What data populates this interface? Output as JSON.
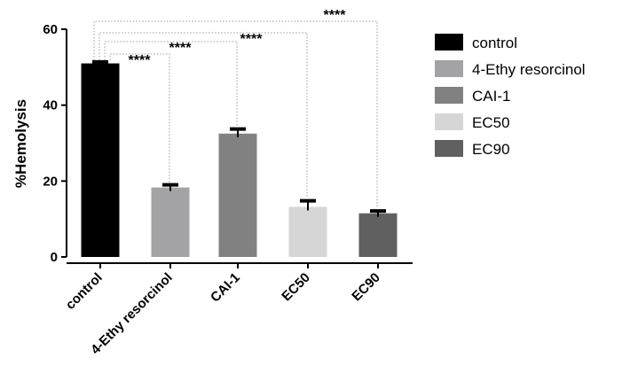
{
  "chart_data": {
    "type": "bar",
    "title": "",
    "xlabel": "",
    "ylabel": "%Hemolysis",
    "ylim": [
      0,
      60
    ],
    "yticks": [
      0,
      20,
      40,
      60
    ],
    "categories": [
      "control",
      "4-Ethy resorcinol",
      "CAI-1",
      "EC50",
      "EC90"
    ],
    "values": [
      51,
      18.3,
      32.5,
      13.2,
      11.5
    ],
    "errors": [
      0.4,
      0.7,
      1.2,
      1.6,
      0.6
    ],
    "colors": [
      "#000000",
      "#a3a3a6",
      "#818181",
      "#d6d6d6",
      "#606060"
    ],
    "legend": {
      "position": "right",
      "entries": [
        "control",
        "4-Ethy resorcinol",
        "CAI-1",
        "EC50",
        "EC90"
      ]
    },
    "significance": [
      {
        "from": "control",
        "to": "4-Ethy resorcinol",
        "label": "****"
      },
      {
        "from": "control",
        "to": "CAI-1",
        "label": "****"
      },
      {
        "from": "control",
        "to": "EC50",
        "label": "****"
      },
      {
        "from": "control",
        "to": "EC90",
        "label": "****"
      }
    ],
    "grid": false
  }
}
